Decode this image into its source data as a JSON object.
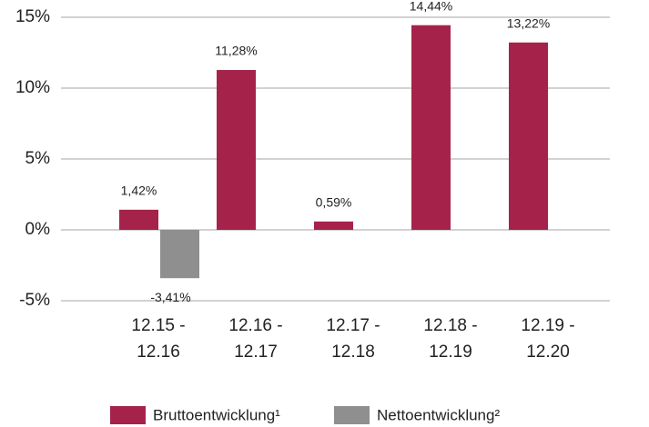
{
  "chart_data": {
    "type": "bar",
    "categories": [
      "12.15 - 12.16",
      "12.16 - 12.17",
      "12.17 - 12.18",
      "12.18 - 12.19",
      "12.19 - 12.20"
    ],
    "series": [
      {
        "name": "Bruttoentwicklung¹",
        "color": "#a5234a",
        "values": [
          1.42,
          11.28,
          0.59,
          14.44,
          13.22
        ],
        "value_labels": [
          "1,42%",
          "11,28%",
          "0,59%",
          "14,44%",
          "13,22%"
        ]
      },
      {
        "name": "Nettoentwicklung²",
        "color": "#8f8f8f",
        "values": [
          -3.41,
          null,
          null,
          null,
          null
        ],
        "value_labels": [
          "-3,41%",
          null,
          null,
          null,
          null
        ]
      }
    ],
    "ylim": [
      -5,
      15
    ],
    "yticks": [
      {
        "value": -5,
        "label": "-5%"
      },
      {
        "value": 0,
        "label": "0%"
      },
      {
        "value": 5,
        "label": "5%"
      },
      {
        "value": 10,
        "label": "10%"
      },
      {
        "value": 15,
        "label": "15%"
      }
    ],
    "grid": true,
    "legend": "bottom"
  }
}
